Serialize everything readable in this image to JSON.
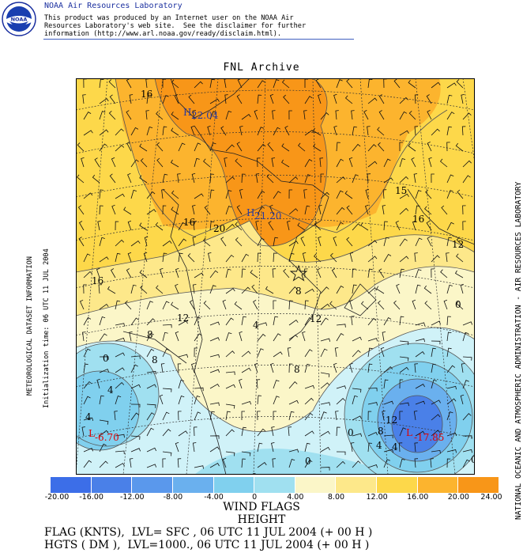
{
  "header": {
    "lab_name": "NOAA Air Resources Laboratory",
    "disclaimer": "This product was produced by an Internet user on the NOAA Air\nResources Laboratory's web site.  See the disclaimer for further\ninformation (http://www.arl.noaa.gov/ready/disclaim.html).",
    "logo_text": "NOAA"
  },
  "map": {
    "title": "FNL Archive",
    "left_label_1": "METEOROLOGICAL DATASET INFORMATION",
    "left_label_2": "Initialization time: 06 UTC 11 JUL 2004",
    "right_label": "NATIONAL OCEANIC AND ATMOSPHERIC ADMINISTRATION - AIR RESOURCES LABORATORY",
    "contour_labels": [
      "16",
      "20",
      "16",
      "16",
      "15",
      "16",
      "12",
      "12",
      "8",
      "8",
      "12",
      "8",
      "4",
      "0",
      "4",
      "0",
      "0",
      "4",
      "0",
      "4",
      "0",
      "12",
      "8",
      "4",
      "0",
      "4",
      "8"
    ],
    "pressure_centers": [
      {
        "type": "H",
        "value": "22.04"
      },
      {
        "type": "H",
        "value": "21.20"
      },
      {
        "type": "L",
        "value": "-6.70"
      },
      {
        "type": "L",
        "value": "-17.85"
      }
    ],
    "colors": {
      "c_lt_m12": "#4a80e8",
      "c_m12_m8": "#6ab0ee",
      "c_m8_m4": "#80d0ee",
      "c_m4_0": "#a0e0f0",
      "c_0_4": "#d0f2f8",
      "c_4_8": "#fbf6c8",
      "c_8_12": "#fde88a",
      "c_12_16": "#fdd84a",
      "c_16_20": "#fcb42e",
      "c_20_24": "#f89618"
    }
  },
  "legend": {
    "colorbar_colors": [
      "#3c6ee8",
      "#4a80e8",
      "#5a98ec",
      "#6ab0ee",
      "#80d0ee",
      "#a0e0f0",
      "#fbf6c8",
      "#fde88a",
      "#fdd84a",
      "#fcb42e",
      "#f89618"
    ],
    "tick_labels": [
      "-20.00",
      "-16.00",
      "-12.00",
      "-8.00",
      "-4.00",
      "0",
      "4.00",
      "8.00",
      "12.00",
      "16.00",
      "20.00",
      "24.00"
    ],
    "title_1": "WIND FLAGS",
    "title_2": "HEIGHT"
  },
  "footer": {
    "line_1": "FLAG (KNTS),  LVL= SFC , 06 UTC 11 JUL 2004 (+ 00 H )",
    "line_2": "HGTS ( DM ),  LVL=1000., 06 UTC 11 JUL 2004 (+ 00 H )"
  }
}
